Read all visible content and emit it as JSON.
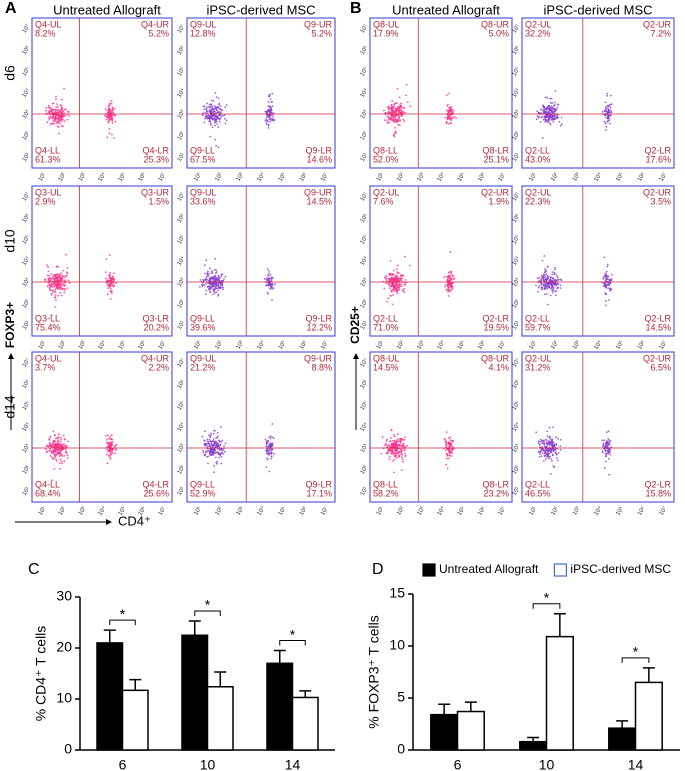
{
  "flow": [
    {
      "letter": "A",
      "columns": [
        "Untreated Allograft",
        "iPSC-derived MSC"
      ],
      "rows": [
        "d6",
        "d10",
        "d14"
      ],
      "y_label": "FOXP3+",
      "x_label": "CD4⁺",
      "plots": [
        [
          [
            {
              "name": "Q4-UL",
              "value": "8.2%"
            },
            {
              "name": "Q4-UR",
              "value": "5.2%"
            },
            {
              "name": "Q4-LL",
              "value": "61.3%"
            },
            {
              "name": "Q4-LR",
              "value": "25.3%"
            }
          ],
          [
            {
              "name": "Q9-UL",
              "value": "12.8%"
            },
            {
              "name": "Q9-UR",
              "value": "5.2%"
            },
            {
              "name": "Q9-LL",
              "value": "67.5%"
            },
            {
              "name": "Q9-LR",
              "value": "14.6%"
            }
          ]
        ],
        [
          [
            {
              "name": "Q3-UL",
              "value": "2.9%"
            },
            {
              "name": "Q3-UR",
              "value": "1.5%"
            },
            {
              "name": "Q3-LL",
              "value": "75.4%"
            },
            {
              "name": "Q3-LR",
              "value": "20.2%"
            }
          ],
          [
            {
              "name": "Q9-UL",
              "value": "33.6%"
            },
            {
              "name": "Q9-UR",
              "value": "14.5%"
            },
            {
              "name": "Q9-LL",
              "value": "39.6%"
            },
            {
              "name": "Q9-LR",
              "value": "12.2%"
            }
          ]
        ],
        [
          [
            {
              "name": "Q4-UL",
              "value": "3.7%"
            },
            {
              "name": "Q4-UR",
              "value": "2.2%"
            },
            {
              "name": "Q4-LL",
              "value": "68.4%"
            },
            {
              "name": "Q4-LR",
              "value": "25.6%"
            }
          ],
          [
            {
              "name": "Q9-UL",
              "value": "21.2%"
            },
            {
              "name": "Q9-UR",
              "value": "8.8%"
            },
            {
              "name": "Q9-LL",
              "value": "52.9%"
            },
            {
              "name": "Q9-LR",
              "value": "17.1%"
            }
          ]
        ]
      ]
    },
    {
      "letter": "B",
      "columns": [
        "Untreated Allograft",
        "iPSC-derived MSC"
      ],
      "y_label": "CD25+",
      "plots": [
        [
          [
            {
              "name": "Q8-UL",
              "value": "17.9%"
            },
            {
              "name": "Q8-UR",
              "value": "5.0%"
            },
            {
              "name": "Q8-LL",
              "value": "52.0%"
            },
            {
              "name": "Q8-LR",
              "value": "25.1%"
            }
          ],
          [
            {
              "name": "Q2-UL",
              "value": "32.2%"
            },
            {
              "name": "Q2-UR",
              "value": "7.2%"
            },
            {
              "name": "Q2-LL",
              "value": "43.0%"
            },
            {
              "name": "Q2-LR",
              "value": "17.6%"
            }
          ]
        ],
        [
          [
            {
              "name": "Q2-UL",
              "value": "7.6%"
            },
            {
              "name": "Q2-UR",
              "value": "1.9%"
            },
            {
              "name": "Q2-LL",
              "value": "71.0%"
            },
            {
              "name": "Q2-LR",
              "value": "19.5%"
            }
          ],
          [
            {
              "name": "Q2-UL",
              "value": "22.3%"
            },
            {
              "name": "Q2-UR",
              "value": "3.5%"
            },
            {
              "name": "Q2-LL",
              "value": "59.7%"
            },
            {
              "name": "Q2-LR",
              "value": "14.5%"
            }
          ]
        ],
        [
          [
            {
              "name": "Q8-UL",
              "value": "14.5%"
            },
            {
              "name": "Q8-UR",
              "value": "4.1%"
            },
            {
              "name": "Q8-LL",
              "value": "58.2%"
            },
            {
              "name": "Q8-LR",
              "value": "23.2%"
            }
          ],
          [
            {
              "name": "Q2-UL",
              "value": "31.2%"
            },
            {
              "name": "Q2-UR",
              "value": "6.5%"
            },
            {
              "name": "Q2-LL",
              "value": "46.5%"
            },
            {
              "name": "Q2-LR",
              "value": "15.8%"
            }
          ]
        ]
      ]
    }
  ],
  "log_ticks": [
    "10¹",
    "10²",
    "10³",
    "10⁴",
    "10⁵",
    "10⁶",
    "10⁷"
  ],
  "chart_data": [
    {
      "type": "bar",
      "panel": "C",
      "y_label": "% CD4⁺ T cells",
      "categories": [
        "6",
        "10",
        "14"
      ],
      "series": [
        {
          "color": "#000000",
          "values": [
            21,
            22.5,
            17
          ],
          "errors": [
            2.5,
            2.8,
            2.5
          ]
        },
        {
          "color": "#ffffff",
          "values": [
            11.7,
            12.4,
            10.3
          ],
          "errors": [
            2.1,
            2.9,
            1.3
          ]
        }
      ],
      "significance": [
        "*",
        "*",
        "*"
      ],
      "ylim": [
        0,
        30
      ],
      "yticks": [
        0,
        10,
        20,
        30
      ]
    },
    {
      "type": "bar",
      "panel": "D",
      "y_label": "% FOXP3⁺ T cells",
      "categories": [
        "6",
        "10",
        "14"
      ],
      "series": [
        {
          "name": "Untreated Allograft",
          "color": "#000000",
          "values": [
            3.4,
            0.8,
            2.1
          ],
          "errors": [
            1.0,
            0.4,
            0.7
          ]
        },
        {
          "name": "iPSC-derived MSC",
          "color": "#ffffff",
          "values": [
            3.7,
            10.9,
            6.5
          ],
          "errors": [
            0.9,
            2.2,
            1.4
          ]
        }
      ],
      "significance": [
        null,
        "*",
        "*"
      ],
      "ylim": [
        0,
        15
      ],
      "yticks": [
        0,
        5,
        10,
        15
      ]
    }
  ]
}
